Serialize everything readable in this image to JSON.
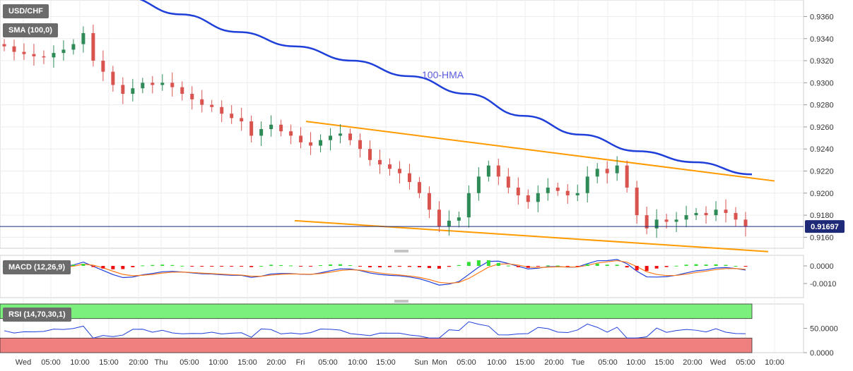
{
  "panes": {
    "price_label": "USD/CHF",
    "sma_label": "SMA (100,0)",
    "macd_label": "MACD (12,26,9)",
    "rsi_label": "RSI (14,70,30,1)"
  },
  "colors": {
    "up": "#2e8b57",
    "down": "#d9534f",
    "hma": "#1f3fd9",
    "channel": "#ff9a00",
    "macd_line": "#1f3fd9",
    "signal_line": "#ff7a1a",
    "hist_pos": "#33dd33",
    "hist_neg": "#ee1111",
    "rsi_line": "#1f3fd9",
    "rsi_over": "#7cf07c",
    "rsi_under": "#f07f7f",
    "price_line": "#1b2a7a"
  },
  "chart_data": [
    {
      "type": "candlestick",
      "pane": "price",
      "ylim": [
        0.915,
        0.9375
      ],
      "y_ticks": [
        "0.9160",
        "0.9180",
        "0.9200",
        "0.9220",
        "0.9240",
        "0.9260",
        "0.9280",
        "0.9300",
        "0.9320",
        "0.9340",
        "0.9360"
      ],
      "x_ticks": [
        "Wed",
        "05:00",
        "10:00",
        "15:00",
        "20:00",
        "Thu",
        "05:00",
        "10:00",
        "15:00",
        "20:00",
        "Fri",
        "05:00",
        "10:00",
        "15:00",
        "Sun",
        "Mon",
        "05:00",
        "10:00",
        "15:00",
        "20:00",
        "Tue",
        "05:00",
        "10:00",
        "15:00",
        "20:00",
        "Wed",
        "05:00",
        "10:00"
      ],
      "last_price": "0.91697",
      "annotations": [
        "100-HMA"
      ],
      "channel_upper": [
        [
          0.9265,
          0.9211
        ]
      ],
      "channel_lower": [
        [
          0.9175,
          0.9147
        ]
      ],
      "hma": [
        0.9378,
        0.9362,
        0.9346,
        0.9333,
        0.932,
        0.9306,
        0.929,
        0.927,
        0.9253,
        0.9238,
        0.9228,
        0.9217
      ],
      "close": [
        0.9333,
        0.9328,
        0.9326,
        0.9324,
        0.9323,
        0.9327,
        0.933,
        0.9335,
        0.9345,
        0.932,
        0.931,
        0.9298,
        0.929,
        0.9295,
        0.93,
        0.9298,
        0.93,
        0.9296,
        0.929,
        0.9285,
        0.928,
        0.9278,
        0.9272,
        0.9268,
        0.9265,
        0.9252,
        0.9258,
        0.9262,
        0.9256,
        0.9252,
        0.9246,
        0.9243,
        0.9248,
        0.9252,
        0.9254,
        0.9248,
        0.924,
        0.923,
        0.9226,
        0.9222,
        0.9218,
        0.921,
        0.92,
        0.9185,
        0.917,
        0.9175,
        0.9178,
        0.92,
        0.9215,
        0.9225,
        0.9215,
        0.9205,
        0.9198,
        0.9192,
        0.92,
        0.9205,
        0.9202,
        0.9198,
        0.92,
        0.9215,
        0.9222,
        0.9218,
        0.9225,
        0.9205,
        0.918,
        0.9168,
        0.9176,
        0.9174,
        0.9176,
        0.918,
        0.9182,
        0.918,
        0.9185,
        0.9182,
        0.9176,
        0.917
      ],
      "ohlc_note": "close series estimated from candle positions"
    },
    {
      "type": "macd",
      "pane": "macd",
      "ylim": [
        -0.0018,
        0.0006
      ],
      "y_ticks": [
        "0.0000",
        "-0.0010"
      ]
    },
    {
      "type": "rsi",
      "pane": "rsi",
      "ylim": [
        0,
        100
      ],
      "y_ticks": [
        "50.0000",
        "0.0000"
      ]
    }
  ]
}
